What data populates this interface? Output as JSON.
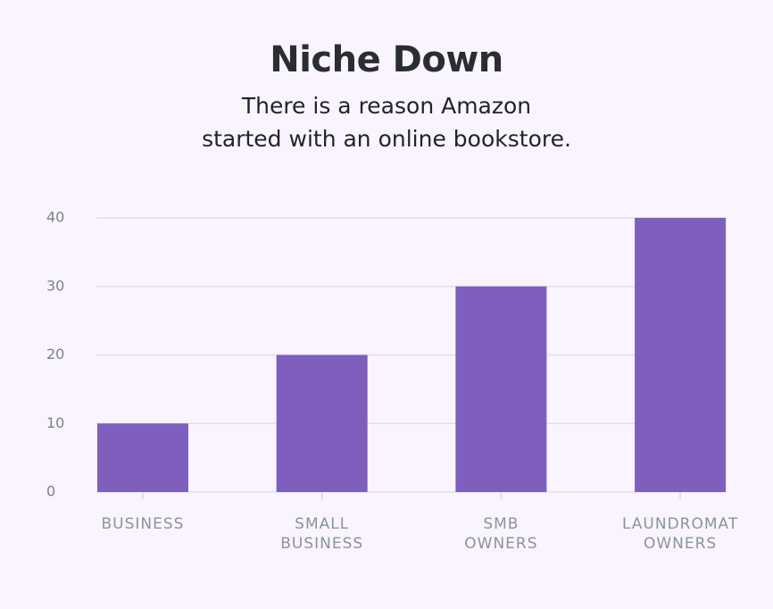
{
  "chart_data": {
    "type": "bar",
    "title": "Niche Down",
    "subtitle": "There is a reason Amazon started with an online bookstore.",
    "categories": [
      "BUSINESS",
      "SMALL BUSINESS",
      "SMB OWNERS",
      "LAUNDROMAT OWNERS"
    ],
    "values": [
      10,
      20,
      30,
      40
    ],
    "color": "#7e5fbd",
    "ylim": [
      0,
      40
    ],
    "yticks": [
      0,
      10,
      20,
      30,
      40
    ],
    "grid": true
  }
}
